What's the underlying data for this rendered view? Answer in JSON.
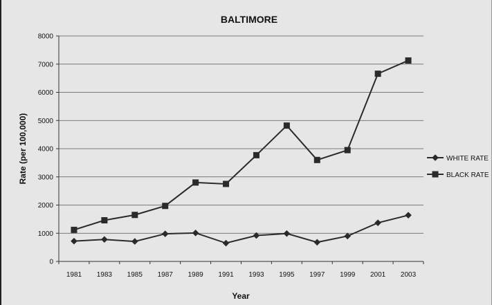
{
  "chart_data": {
    "type": "line",
    "title": "BALTIMORE",
    "xlabel": "Year",
    "ylabel": "Rate (per 100,000)",
    "categories": [
      "1981",
      "1983",
      "1985",
      "1987",
      "1989",
      "1991",
      "1993",
      "1995",
      "1997",
      "1999",
      "2001",
      "2003"
    ],
    "ylim": [
      0,
      8000
    ],
    "yticks": [
      0,
      1000,
      2000,
      3000,
      4000,
      5000,
      6000,
      7000,
      8000
    ],
    "grid": true,
    "legend_position": "right",
    "series": [
      {
        "name": "WHITE RATE",
        "marker": "diamond",
        "color": "#2a2a2a",
        "values": [
          720,
          780,
          710,
          980,
          1010,
          650,
          920,
          990,
          680,
          900,
          1370,
          1640
        ]
      },
      {
        "name": "BLACK RATE",
        "marker": "square",
        "color": "#2a2a2a",
        "values": [
          1120,
          1460,
          1650,
          1970,
          2800,
          2750,
          3770,
          4820,
          3600,
          3950,
          6660,
          7130
        ]
      }
    ]
  }
}
